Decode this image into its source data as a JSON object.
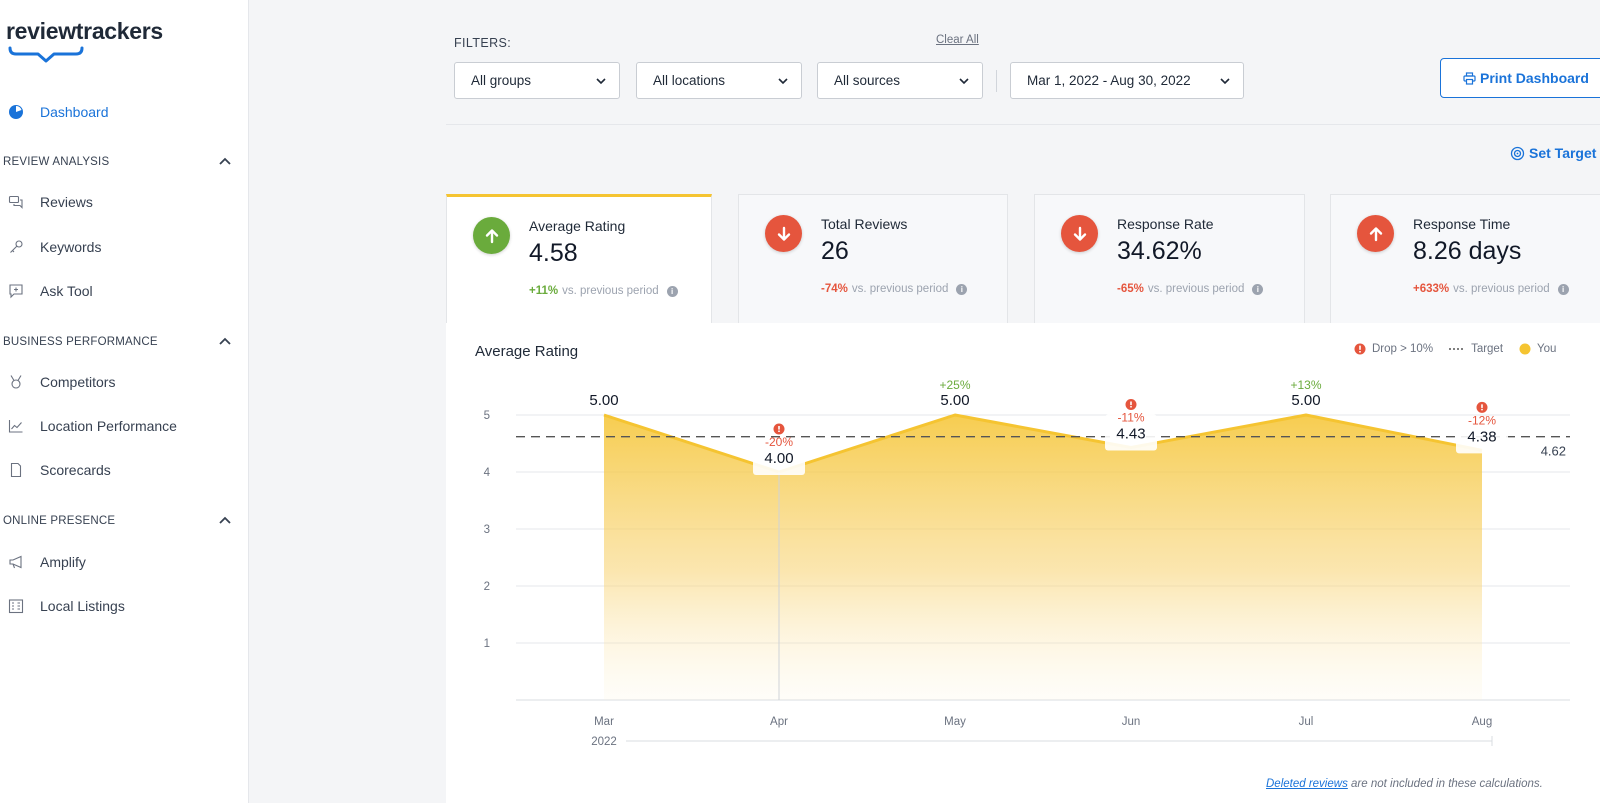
{
  "brand": {
    "name": "reviewtrackers"
  },
  "sidebar": {
    "dashboard": "Dashboard",
    "sections": [
      {
        "title": "REVIEW ANALYSIS",
        "items": [
          "Reviews",
          "Keywords",
          "Ask Tool"
        ]
      },
      {
        "title": "BUSINESS PERFORMANCE",
        "items": [
          "Competitors",
          "Location Performance",
          "Scorecards"
        ]
      },
      {
        "title": "ONLINE PRESENCE",
        "items": [
          "Amplify",
          "Local Listings"
        ]
      }
    ]
  },
  "filters": {
    "label": "FILTERS:",
    "clear_all": "Clear All",
    "groups": "All groups",
    "locations": "All locations",
    "sources": "All sources",
    "date_range": "Mar 1, 2022 - Aug 30, 2022"
  },
  "actions": {
    "print": "Print Dashboard",
    "set_target": "Set Target"
  },
  "kpis": [
    {
      "title": "Average Rating",
      "value": "4.58",
      "delta": "+11%",
      "suffix": "vs. previous period",
      "direction": "up",
      "color": "#6aab3c"
    },
    {
      "title": "Total Reviews",
      "value": "26",
      "delta": "-74%",
      "suffix": "vs. previous period",
      "direction": "down",
      "color": "#e5553d"
    },
    {
      "title": "Response Rate",
      "value": "34.62%",
      "delta": "-65%",
      "suffix": "vs. previous period",
      "direction": "down",
      "color": "#e5553d"
    },
    {
      "title": "Response Time",
      "value": "8.26 days",
      "delta": "+633%",
      "suffix": "vs. previous period",
      "direction": "up",
      "color": "#e5553d"
    }
  ],
  "chart": {
    "title": "Average Rating",
    "legend": {
      "drop": "Drop > 10%",
      "target": "Target",
      "you": "You"
    },
    "footnote_link": "Deleted reviews",
    "footnote_text": " are not included in these calculations."
  },
  "chart_data": {
    "type": "area",
    "title": "Average Rating",
    "categories": [
      "Mar",
      "Apr",
      "May",
      "Jun",
      "Jul",
      "Aug"
    ],
    "year_label": "2022",
    "series": [
      {
        "name": "You",
        "values": [
          5.0,
          4.0,
          5.0,
          4.43,
          5.0,
          4.38
        ],
        "labels": [
          "5.00",
          "4.00",
          "5.00",
          "4.43",
          "5.00",
          "4.38"
        ]
      }
    ],
    "changes": [
      "",
      "-20%",
      "+25%",
      "-11%",
      "+13%",
      "-12%"
    ],
    "drop_flags": [
      false,
      true,
      false,
      true,
      false,
      true
    ],
    "target": {
      "value": 4.62,
      "label": "4.62"
    },
    "yticks": [
      1,
      2,
      3,
      4,
      5
    ],
    "ylim": [
      0,
      5
    ],
    "grid": true,
    "legend_position": "top-right",
    "colors": {
      "area": "#f5c431",
      "drop": "#e5553d",
      "gain": "#6aab3c",
      "target": "#555555"
    }
  }
}
